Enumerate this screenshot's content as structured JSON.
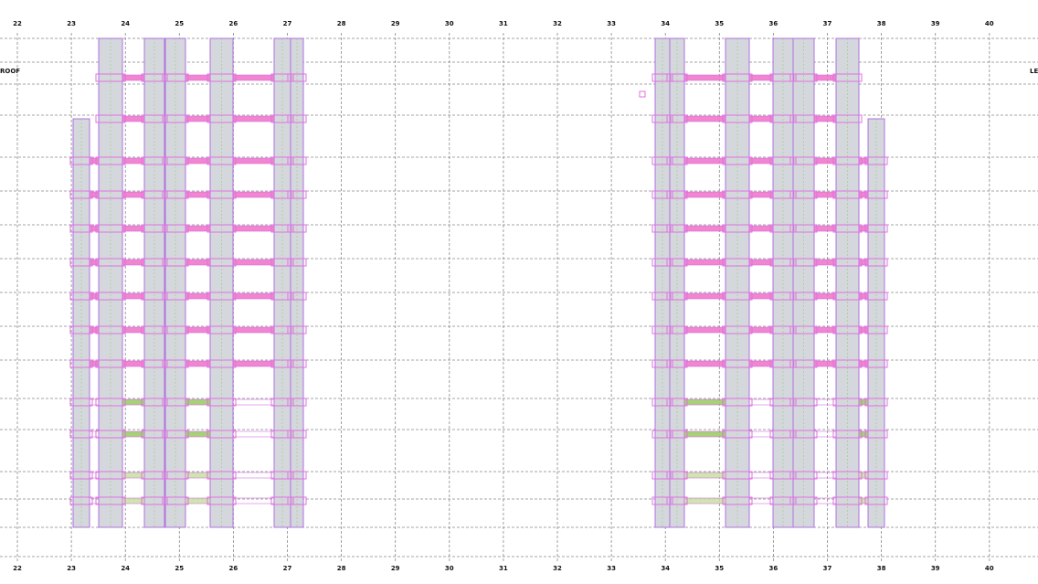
{
  "grid_labels_top": [
    "22",
    "23",
    "24",
    "25",
    "26",
    "27",
    "28",
    "29",
    "30",
    "31",
    "32",
    "33",
    "34",
    "35",
    "36",
    "37",
    "38",
    "39",
    "40"
  ],
  "grid_labels_bottom": [
    "22",
    "23",
    "24",
    "25",
    "26",
    "27",
    "28",
    "29",
    "30",
    "31",
    "32",
    "33",
    "34",
    "35",
    "36",
    "37",
    "38",
    "39",
    "40"
  ],
  "level_labels": {
    "left": "ROOF",
    "right": "LEV"
  }
}
